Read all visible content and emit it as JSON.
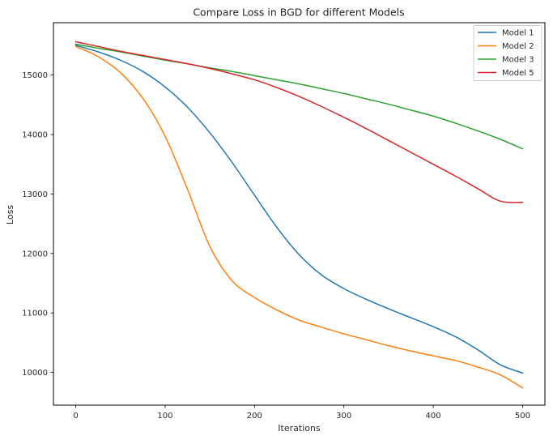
{
  "chart_data": {
    "type": "line",
    "title": "Compare Loss in BGD for different Models",
    "xlabel": "Iterations",
    "ylabel": "Loss",
    "xlim": [
      -25,
      525
    ],
    "ylim": [
      9450,
      15880
    ],
    "xticks": [
      0,
      100,
      200,
      300,
      400,
      500
    ],
    "yticks": [
      10000,
      11000,
      12000,
      13000,
      14000,
      15000
    ],
    "grid": false,
    "legend_position": "top-right",
    "x": [
      0,
      25,
      50,
      75,
      100,
      125,
      150,
      175,
      200,
      225,
      250,
      275,
      300,
      325,
      350,
      375,
      400,
      425,
      450,
      475,
      500
    ],
    "series": [
      {
        "name": "Model 1",
        "color": "#1f77b4",
        "values": [
          15500,
          15390,
          15250,
          15060,
          14800,
          14460,
          14030,
          13530,
          12980,
          12440,
          11980,
          11640,
          11410,
          11230,
          11070,
          10920,
          10770,
          10600,
          10380,
          10130,
          9990
        ]
      },
      {
        "name": "Model 2",
        "color": "#ff7f0e",
        "values": [
          15480,
          15310,
          15040,
          14610,
          13970,
          13080,
          12120,
          11540,
          11260,
          11050,
          10880,
          10760,
          10650,
          10550,
          10450,
          10360,
          10280,
          10200,
          10090,
          9960,
          9740
        ]
      },
      {
        "name": "Model 3",
        "color": "#2ca02c",
        "values": [
          15520,
          15450,
          15390,
          15320,
          15250,
          15190,
          15120,
          15060,
          14990,
          14920,
          14850,
          14770,
          14690,
          14600,
          14510,
          14410,
          14310,
          14190,
          14060,
          13920,
          13760
        ]
      },
      {
        "name": "Model 5",
        "color": "#d62728",
        "values": [
          15560,
          15480,
          15400,
          15330,
          15260,
          15190,
          15110,
          15020,
          14920,
          14790,
          14640,
          14470,
          14290,
          14100,
          13900,
          13700,
          13500,
          13300,
          13090,
          12880,
          12860
        ]
      }
    ]
  }
}
